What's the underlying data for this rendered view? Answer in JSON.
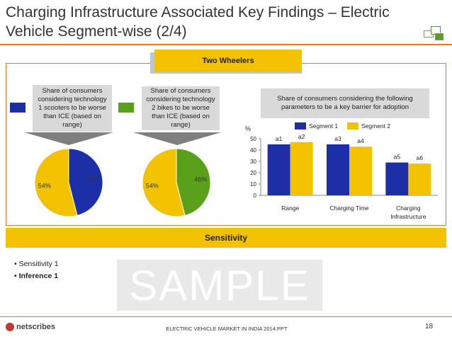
{
  "title": "Charging Infrastructure Associated Key Findings – Electric Vehicle Segment-wise (2/4)",
  "banner": "Two Wheelers",
  "pie1": {
    "callout": "Share of consumers considering technology 1 scooters to be worse than ICE (based on range)",
    "legend_color": "#1d2fa6",
    "slices": [
      {
        "label": "46%",
        "value": 46,
        "color": "#1d2fa6"
      },
      {
        "label": "54%",
        "value": 54,
        "color": "#f2c200"
      }
    ]
  },
  "pie2": {
    "callout": "Share of consumers considering technology 2 bikes to be worse than ICE (based on range)",
    "legend_color": "#5aa01a",
    "slices": [
      {
        "label": "46%",
        "value": 46,
        "color": "#5aa01a"
      },
      {
        "label": "54%",
        "value": 54,
        "color": "#f2c200"
      }
    ]
  },
  "chart_data": {
    "type": "bar",
    "title": "Share of consumers considering the following parameters to be a key barrier for adoption",
    "ylabel": "%",
    "ylim": [
      0,
      50
    ],
    "yticks": [
      "0",
      "10",
      "20",
      "30",
      "40",
      "50"
    ],
    "categories": [
      "Range",
      "Charging Time",
      "Charging Infrastructure"
    ],
    "series": [
      {
        "name": "Segment 1",
        "color": "#1d2fa6",
        "values": [
          45,
          45,
          29
        ],
        "labels": [
          "a1",
          "a3",
          "a5"
        ]
      },
      {
        "name": "Segment 2",
        "color": "#f2c200",
        "values": [
          47,
          43,
          28
        ],
        "labels": [
          "a2",
          "a4",
          "a6"
        ]
      }
    ],
    "grid": false,
    "legend": "top"
  },
  "sensitivity": {
    "header": "Sensitivity",
    "bullets": [
      "• Sensitivity 1",
      "• Inference 1"
    ]
  },
  "watermark": "SAMPLE",
  "footer": {
    "brand": "netscribes",
    "text": "ELECTRIC VEHICLE MARKET IN INDIA 2014.PPT",
    "page": "18"
  }
}
